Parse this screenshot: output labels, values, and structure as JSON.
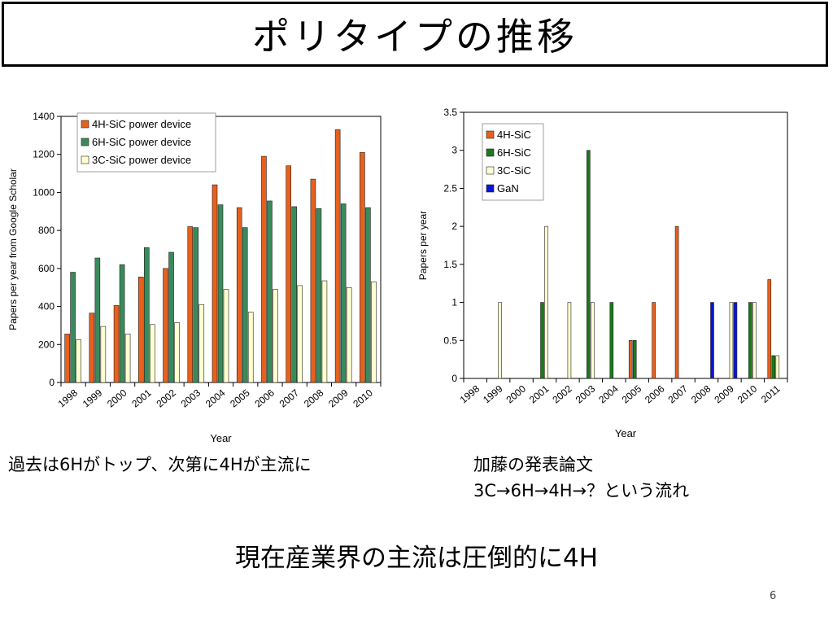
{
  "slide": {
    "title": "ポリタイプの推移",
    "left_caption": "過去は6Hがトップ、次第に4Hが主流に",
    "right_caption_line1": "加藤の発表論文",
    "right_caption_line2": "3C→6H→4H→？という流れ",
    "conclusion": "現在産業界の主流は圧倒的に4H",
    "page_number": "6"
  },
  "chart_data": [
    {
      "type": "bar",
      "categories": [
        "1998",
        "1999",
        "2000",
        "2001",
        "2002",
        "2003",
        "2004",
        "2005",
        "2006",
        "2007",
        "2008",
        "2009",
        "2010"
      ],
      "series": [
        {
          "name": "4H-SiC power device",
          "color": "#e8601c",
          "values": [
            255,
            365,
            405,
            555,
            600,
            820,
            1040,
            920,
            1190,
            1140,
            1070,
            1330,
            1210
          ]
        },
        {
          "name": "6H-SiC power device",
          "color": "#3a8a5c",
          "values": [
            580,
            655,
            620,
            710,
            685,
            815,
            935,
            815,
            955,
            925,
            915,
            940,
            920
          ]
        },
        {
          "name": "3C-SiC power device",
          "color": "#ffffd0",
          "values": [
            225,
            295,
            255,
            305,
            315,
            410,
            490,
            370,
            490,
            510,
            535,
            500,
            530
          ]
        }
      ],
      "xlabel": "Year",
      "ylabel": "Papers per year from Google Scholar",
      "ylim": [
        0,
        1400
      ],
      "yticks": [
        "0",
        "200",
        "400",
        "600",
        "800",
        "1000",
        "1200",
        "1400"
      ],
      "legend": "top-left",
      "grid": false
    },
    {
      "type": "bar",
      "categories": [
        "1998",
        "1999",
        "2000",
        "2001",
        "2002",
        "2003",
        "2004",
        "2005",
        "2006",
        "2007",
        "2008",
        "2009",
        "2010",
        "2011"
      ],
      "series": [
        {
          "name": "4H-SiC",
          "color": "#e8601c",
          "values": [
            0,
            0,
            0,
            0,
            0,
            0,
            0,
            0.5,
            1,
            2,
            0,
            0,
            0,
            1.3
          ]
        },
        {
          "name": "6H-SiC",
          "color": "#1a7a1a",
          "values": [
            0,
            0,
            0,
            1,
            0,
            3,
            1,
            0.5,
            0,
            0,
            0,
            0,
            1,
            0.3
          ]
        },
        {
          "name": "3C-SiC",
          "color": "#ffffd0",
          "values": [
            0,
            1,
            0,
            2,
            1,
            1,
            0,
            0,
            0,
            0,
            0,
            1,
            1,
            0.3
          ]
        },
        {
          "name": "GaN",
          "color": "#0a14d8",
          "values": [
            0,
            0,
            0,
            0,
            0,
            0,
            0,
            0,
            0,
            0,
            1,
            1,
            0,
            0
          ]
        }
      ],
      "xlabel": "Year",
      "ylabel": "Papers per year",
      "ylim": [
        0,
        3.5
      ],
      "yticks": [
        "0",
        "0.5",
        "1",
        "1.5",
        "2",
        "2.5",
        "3",
        "3.5"
      ],
      "legend": "top-left",
      "grid": false
    }
  ]
}
